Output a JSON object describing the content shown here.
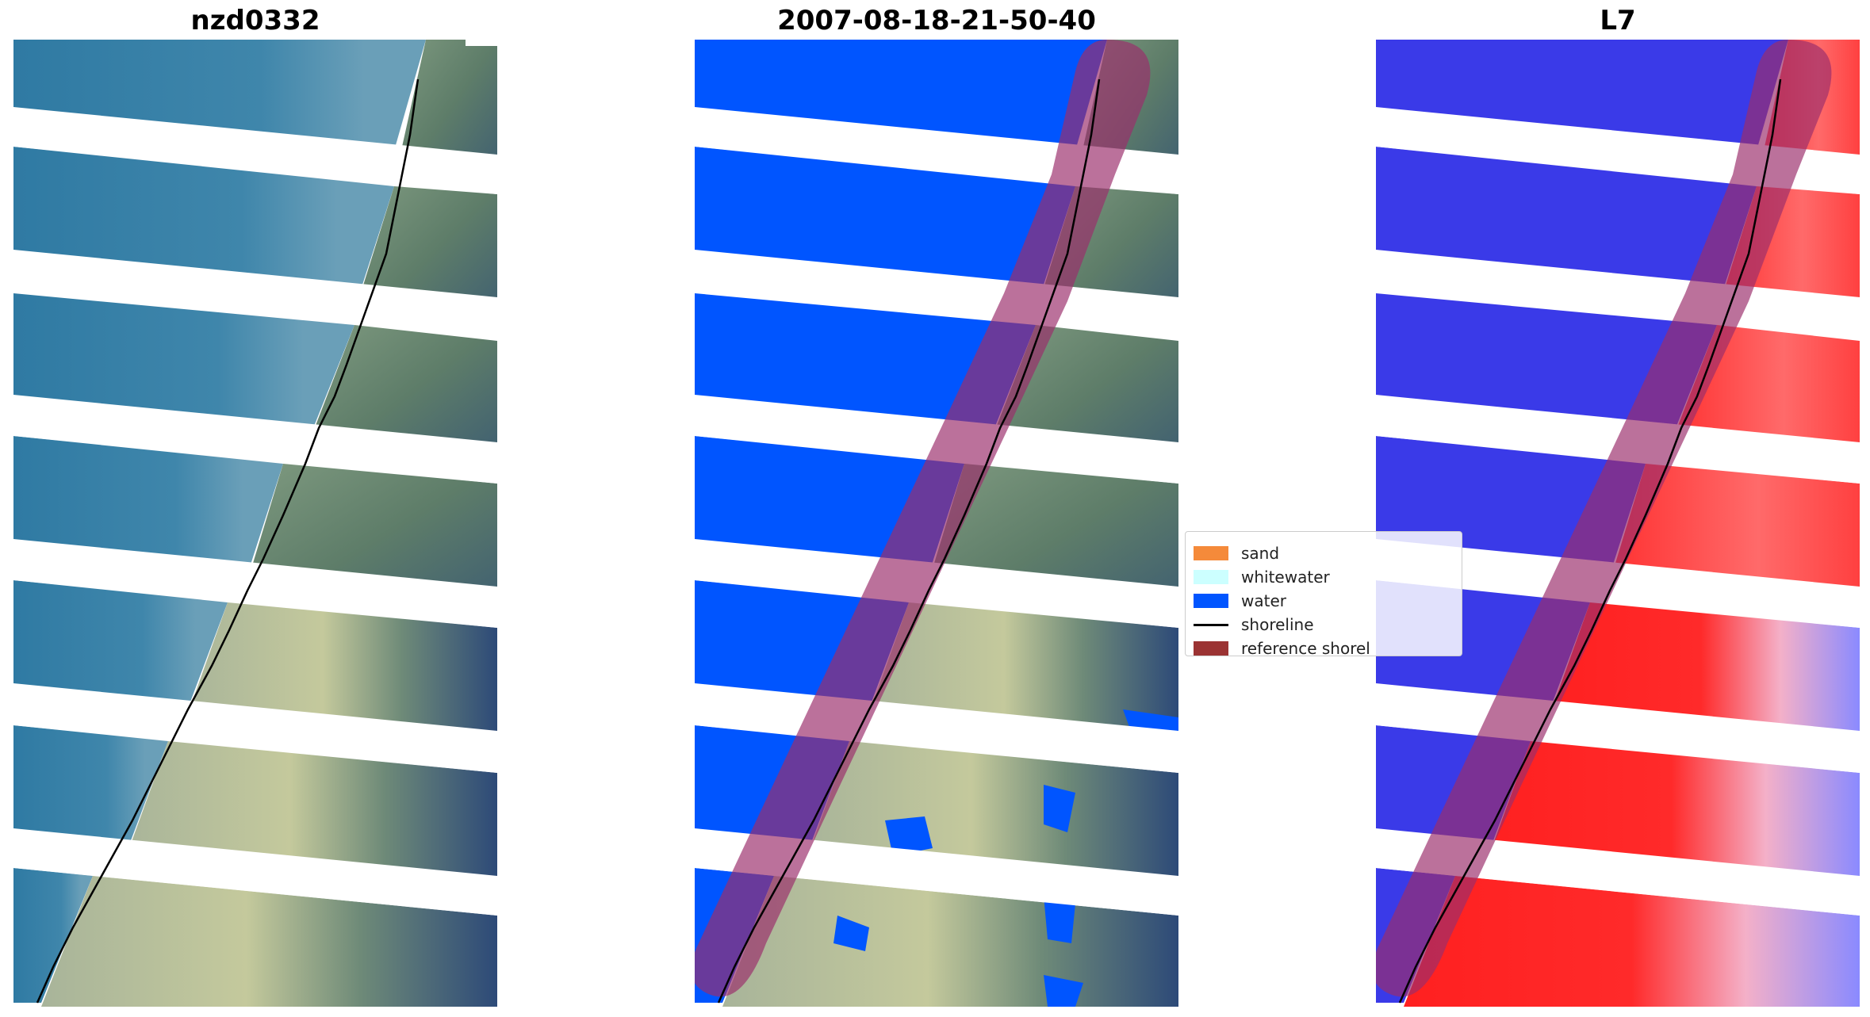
{
  "panels": {
    "left_title": "nzd0332",
    "middle_title": "2007-08-18-21-50-40",
    "right_title": "L7"
  },
  "legend": {
    "items": [
      {
        "label": "sand",
        "color": "#f58a3a",
        "kind": "swatch"
      },
      {
        "label": "whitewater",
        "color": "#ccffff",
        "kind": "swatch"
      },
      {
        "label": "water",
        "color": "#0055ff",
        "kind": "swatch"
      },
      {
        "label": "shoreline",
        "color": "#000000",
        "kind": "line"
      },
      {
        "label": "reference shorel",
        "color": "#9b3333",
        "kind": "swatch"
      }
    ]
  },
  "colors": {
    "ocean_rgb": "#3f7fa2",
    "land_green": "#5f7f6a",
    "land_dark": "#34507a",
    "land_light": "#b9c49a",
    "water_class": "#0055ff",
    "index_water": "#2a2ae6",
    "index_land": "#ff2a2a",
    "reference_buffer": "#9b2e6b"
  }
}
